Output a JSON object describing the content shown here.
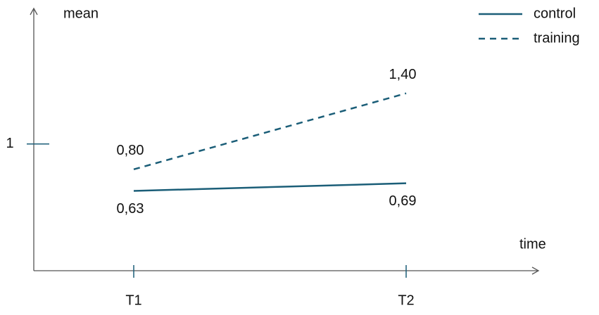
{
  "chart_data": {
    "type": "line",
    "y_label": "mean",
    "x_label": "time",
    "categories": [
      "T1",
      "T2"
    ],
    "series": [
      {
        "name": "control",
        "color": "#1b5e78",
        "dash": false,
        "values": [
          0.63,
          0.69
        ],
        "value_labels": [
          "0,63",
          "0,69"
        ]
      },
      {
        "name": "training",
        "color": "#1b5e78",
        "dash": true,
        "values": [
          0.8,
          1.4
        ],
        "value_labels": [
          "0,80",
          "1,40"
        ]
      }
    ],
    "ylim": [
      0,
      2.07
    ],
    "yticks": [
      1
    ]
  }
}
